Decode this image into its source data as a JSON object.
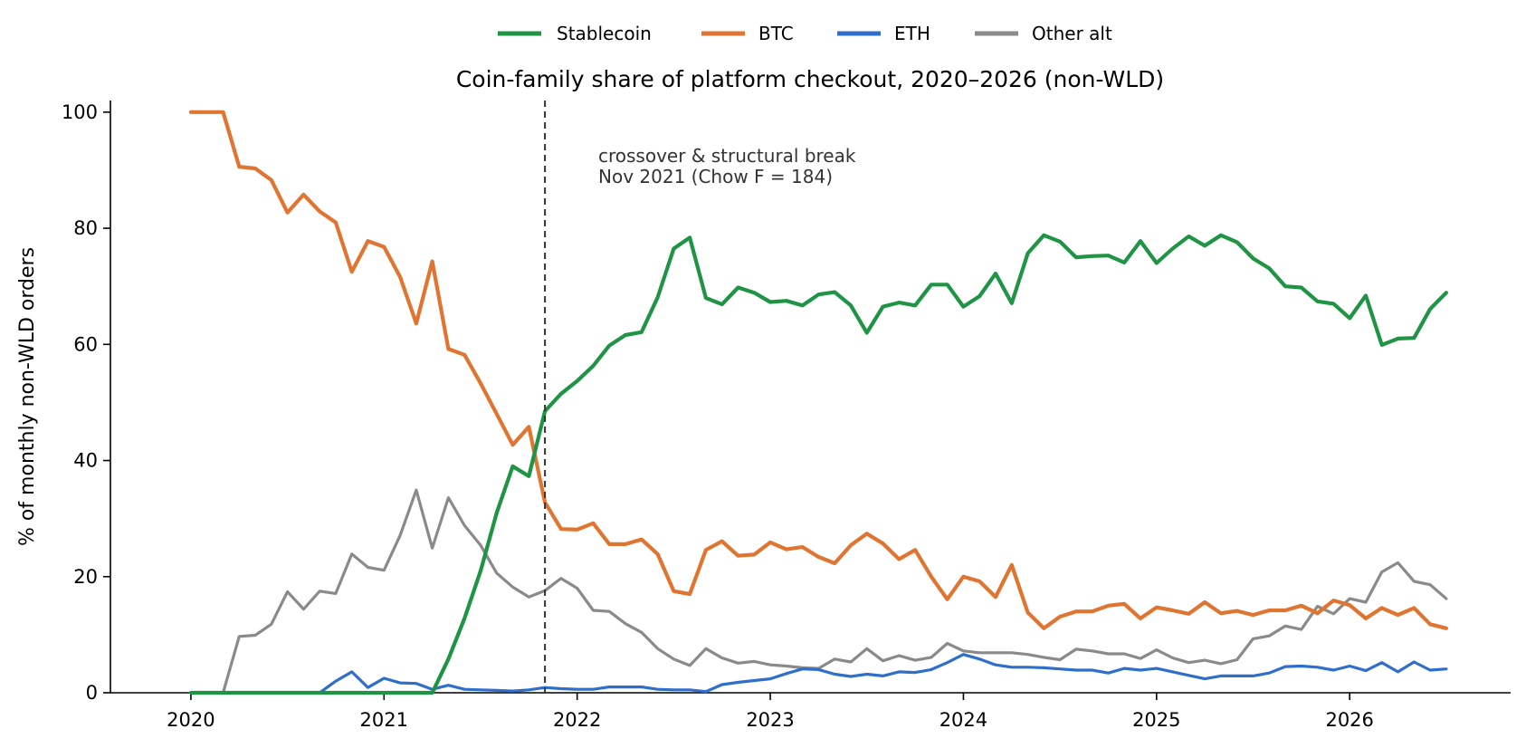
{
  "chart_data": {
    "type": "line",
    "title": "Coin-family share of platform checkout, 2020–2026 (non-WLD)",
    "xlabel": "",
    "ylabel": "% of monthly non-WLD orders",
    "x_ticks": [
      "2020",
      "2021",
      "2022",
      "2023",
      "2024",
      "2025",
      "2026"
    ],
    "y_ticks": [
      "0",
      "20",
      "40",
      "60",
      "80",
      "100"
    ],
    "xlim": [
      "2019-08",
      "2026-11"
    ],
    "ylim": [
      0,
      102
    ],
    "grid": false,
    "legend_position": "top-center",
    "x_start": "2020-01",
    "x_step": "month",
    "annotation": {
      "lines": [
        "crossover & structural break",
        "Nov 2021 (Chow F = 184)"
      ],
      "vline_x": "2021-11"
    },
    "series": [
      {
        "name": "Stablecoin",
        "color": "#1e9444",
        "values": [
          0,
          0,
          0,
          0,
          0,
          0,
          0,
          0,
          0,
          0,
          0,
          0,
          0,
          0,
          0,
          0,
          5.8,
          12.8,
          21,
          31,
          39,
          37.3,
          48.5,
          51.5,
          53.7,
          56.3,
          59.8,
          61.6,
          62.1,
          68.1,
          76.5,
          78.4,
          68,
          66.9,
          69.8,
          68.9,
          67.3,
          67.5,
          66.7,
          68.6,
          69,
          66.7,
          62,
          66.5,
          67.2,
          66.7,
          70.3,
          70.3,
          66.5,
          68.3,
          72.2,
          67.1,
          75.7,
          78.8,
          77.7,
          75,
          75.2,
          75.3,
          74.1,
          77.8,
          74,
          76.5,
          78.6,
          77,
          78.8,
          77.6,
          74.8,
          73.1,
          70,
          69.8,
          67.4,
          67,
          64.5,
          68.4,
          59.9,
          61,
          61.1,
          66.1,
          68.9
        ]
      },
      {
        "name": "BTC",
        "color": "#e07431",
        "values": [
          100,
          100,
          100,
          90.6,
          90.3,
          88.3,
          82.7,
          85.8,
          82.9,
          81,
          72.5,
          77.8,
          76.8,
          71.6,
          63.6,
          74.3,
          59.2,
          58.2,
          53.3,
          48,
          42.7,
          45.8,
          32.8,
          28.2,
          28.1,
          29.2,
          25.6,
          25.6,
          26.4,
          23.9,
          17.5,
          17,
          24.6,
          26.1,
          23.6,
          23.8,
          25.9,
          24.7,
          25.1,
          23.4,
          22.3,
          25.4,
          27.4,
          25.7,
          23,
          24.6,
          20,
          16.1,
          20,
          19.2,
          16.5,
          22,
          13.8,
          11.1,
          13.1,
          14,
          14,
          15,
          15.3,
          12.8,
          14.7,
          14.2,
          13.6,
          15.6,
          13.7,
          14.1,
          13.4,
          14.2,
          14.2,
          15,
          13.7,
          15.9,
          15.1,
          12.8,
          14.6,
          13.4,
          14.6,
          11.8,
          11.1
        ]
      },
      {
        "name": "ETH",
        "color": "#2f6fcb",
        "values": [
          0,
          0,
          0,
          0,
          0,
          0,
          0,
          0,
          0,
          2,
          3.6,
          0.9,
          2.5,
          1.7,
          1.6,
          0.6,
          1.3,
          0.6,
          0.5,
          0.4,
          0.3,
          0.5,
          0.9,
          0.7,
          0.6,
          0.6,
          1,
          1,
          1,
          0.6,
          0.5,
          0.5,
          0.2,
          1.4,
          1.8,
          2.1,
          2.4,
          3.3,
          4.1,
          4,
          3.2,
          2.8,
          3.2,
          2.9,
          3.6,
          3.5,
          4,
          5.2,
          6.6,
          5.8,
          4.8,
          4.4,
          4.4,
          4.3,
          4.1,
          3.9,
          3.9,
          3.4,
          4.2,
          3.9,
          4.2,
          3.6,
          3,
          2.4,
          2.9,
          2.9,
          2.9,
          3.4,
          4.5,
          4.6,
          4.4,
          3.9,
          4.6,
          3.8,
          5.2,
          3.6,
          5.3,
          3.9,
          4.1
        ]
      },
      {
        "name": "Other alt",
        "color": "#8a8a8a",
        "values": [
          0,
          0,
          0,
          9.7,
          9.9,
          11.8,
          17.4,
          14.4,
          17.5,
          17.1,
          23.9,
          21.6,
          21.1,
          27.1,
          34.9,
          24.9,
          33.6,
          28.8,
          25.4,
          20.6,
          18.2,
          16.5,
          17.6,
          19.7,
          18,
          14.2,
          14,
          11.9,
          10.4,
          7.6,
          5.8,
          4.7,
          7.6,
          6,
          5.1,
          5.4,
          4.8,
          4.6,
          4.3,
          4.2,
          5.8,
          5.3,
          7.6,
          5.5,
          6.4,
          5.6,
          6.1,
          8.5,
          7.2,
          6.9,
          6.9,
          6.9,
          6.6,
          6.1,
          5.7,
          7.5,
          7.2,
          6.7,
          6.7,
          5.9,
          7.4,
          6,
          5.2,
          5.6,
          5,
          5.7,
          9.3,
          9.8,
          11.5,
          10.9,
          14.9,
          13.6,
          16.2,
          15.6,
          20.8,
          22.4,
          19.2,
          18.6,
          16.2
        ]
      }
    ]
  }
}
